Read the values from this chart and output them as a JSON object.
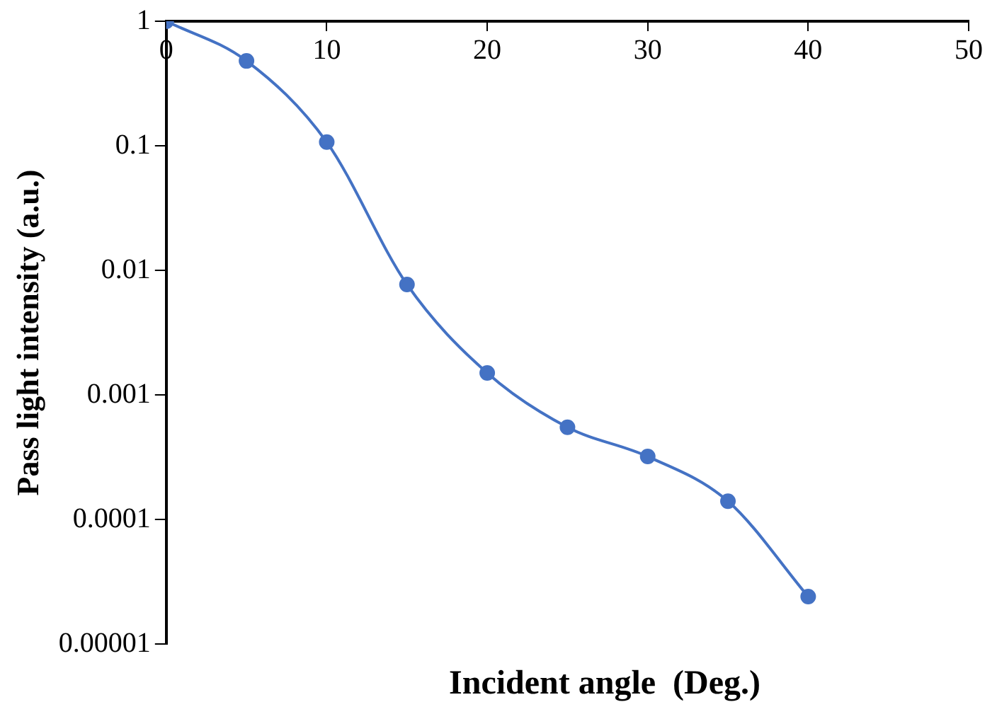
{
  "chart_data": {
    "type": "line",
    "xlabel": "Incident angle  (Deg.)",
    "ylabel": "Pass light intensity (a.u.)",
    "x": [
      0,
      5,
      10,
      15,
      20,
      25,
      30,
      35,
      40
    ],
    "series": [
      {
        "color": "#4472c4",
        "values": [
          1,
          0.48,
          0.107,
          0.0077,
          0.0015,
          0.00055,
          0.00032,
          0.00014,
          2.4e-05
        ]
      }
    ],
    "log": "y",
    "xlim": [
      0,
      50
    ],
    "xticks": [
      0,
      10,
      20,
      30,
      40,
      50
    ],
    "ylim": [
      1e-05,
      1
    ],
    "yticks": [
      {
        "value": 1e-05,
        "label": "0.00001"
      },
      {
        "value": 0.0001,
        "label": "0.0001"
      },
      {
        "value": 0.001,
        "label": "0.001"
      },
      {
        "value": 0.01,
        "label": "0.01"
      },
      {
        "value": 0.1,
        "label": "0.1"
      },
      {
        "value": 1,
        "label": "1"
      }
    ],
    "grid": false,
    "legend": false,
    "marker": "circle",
    "line_style": "solid"
  }
}
